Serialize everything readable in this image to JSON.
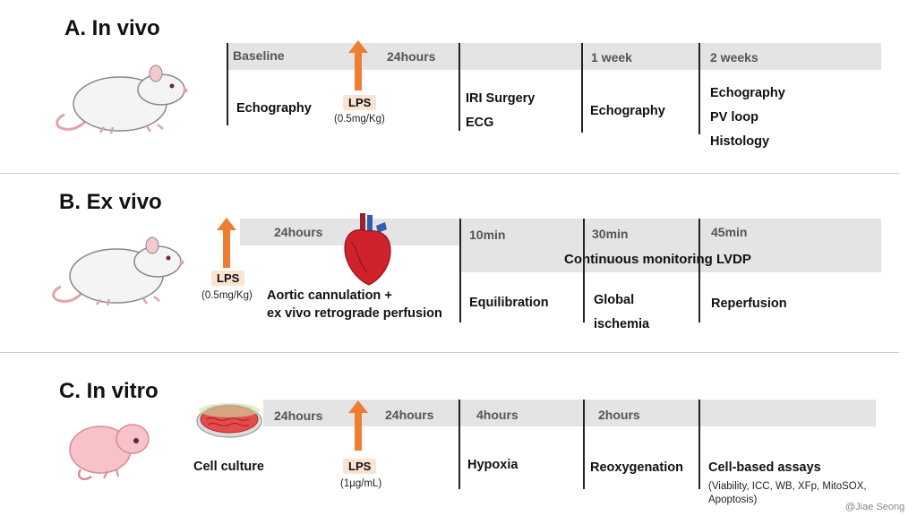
{
  "panelA": {
    "title": "A. In vivo",
    "bands": [
      "Baseline",
      "24hours",
      "1 week",
      "2 weeks"
    ],
    "baseline_task": "Echography",
    "lps_label": "LPS",
    "lps_dose": "(0.5mg/Kg)",
    "surgery": [
      "IRI Surgery",
      "ECG"
    ],
    "week1_task": "Echography",
    "week2_tasks": [
      "Echography",
      "PV loop",
      "Histology"
    ]
  },
  "panelB": {
    "title": "B. Ex vivo",
    "lps_label": "LPS",
    "lps_dose": "(0.5mg/Kg)",
    "band_24h": "24hours",
    "perfusion": [
      "Aortic cannulation  +",
      "ex vivo retrograde perfusion"
    ],
    "bands": [
      "10min",
      "30min",
      "45min"
    ],
    "monitoring": "Continuous monitoring LVDP",
    "phases": [
      "Equilibration",
      "Global",
      "ischemia",
      "Reperfusion"
    ]
  },
  "panelC": {
    "title": "C. In vitro",
    "culture": "Cell culture",
    "bands": [
      "24hours",
      "24hours",
      "4hours",
      "2hours"
    ],
    "lps_label": "LPS",
    "lps_dose": "(1µg/mL)",
    "phases": [
      "Hypoxia",
      "Reoxygenation",
      "Cell-based assays"
    ],
    "assays": [
      "(Viability, ICC, WB, XFp, MitoSOX,",
      "Apoptosis)"
    ]
  },
  "credit": "@Jiae Seong",
  "colors": {
    "arrow": "#ef7d32",
    "lps_box": "#fbe3d2",
    "band": "#e4e4e4",
    "heart": "#d0222b"
  }
}
